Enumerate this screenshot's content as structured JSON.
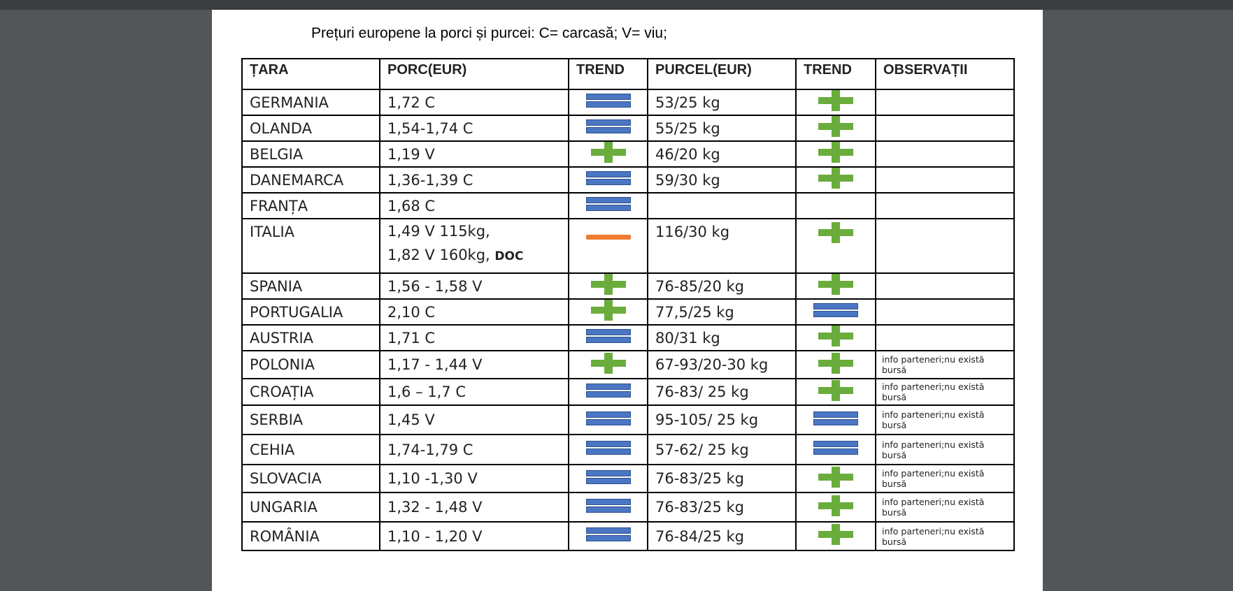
{
  "document": {
    "title": "Prețuri europene la porci și purcei: C= carcasă; V= viu;",
    "table": {
      "headers": [
        "ȚARA",
        "PORC(EUR)",
        "TREND",
        "PURCEL(EUR)",
        "TREND",
        "OBSERVAȚII"
      ],
      "rows": [
        {
          "tara": "GERMANIA",
          "porc": [
            "1,72 C"
          ],
          "porc_trend": "equal",
          "purcel": "53/25 kg",
          "purcel_trend": "up",
          "observatii": null
        },
        {
          "tara": "OLANDA",
          "porc": [
            "1,54-1,74 C"
          ],
          "porc_trend": "equal",
          "purcel": "55/25 kg",
          "purcel_trend": "up",
          "observatii": null
        },
        {
          "tara": "BELGIA",
          "porc": [
            "1,19 V"
          ],
          "porc_trend": "up",
          "purcel": "46/20 kg",
          "purcel_trend": "up",
          "observatii": null
        },
        {
          "tara": "DANEMARCA",
          "porc": [
            "1,36-1,39 C"
          ],
          "porc_trend": "equal",
          "purcel": "59/30 kg",
          "purcel_trend": "up",
          "observatii": null
        },
        {
          "tara": "FRANȚA",
          "porc": [
            "1,68 C"
          ],
          "porc_trend": "equal",
          "purcel": null,
          "purcel_trend": null,
          "observatii": null
        },
        {
          "tara": "ITALIA",
          "porc": [
            "1,49  V 115kg,",
            "1,82 V 160kg,"
          ],
          "porc_note": "DOC",
          "porc_trend": "down",
          "purcel": "116/30 kg",
          "purcel_trend": "up",
          "observatii": null
        },
        {
          "tara": "SPANIA",
          "porc": [
            "1,56 - 1,58 V"
          ],
          "porc_trend": "up",
          "purcel": "76-85/20 kg",
          "purcel_trend": "up",
          "observatii": null
        },
        {
          "tara": "PORTUGALIA",
          "porc": [
            "2,10 C"
          ],
          "porc_trend": "up",
          "purcel": "77,5/25 kg",
          "purcel_trend": "equal",
          "observatii": null
        },
        {
          "tara": "AUSTRIA",
          "porc": [
            "1,71 C"
          ],
          "porc_trend": "equal",
          "purcel": "80/31 kg",
          "purcel_trend": "up",
          "observatii": null
        },
        {
          "tara": "POLONIA",
          "porc": [
            "1,17 - 1,44 V"
          ],
          "porc_trend": "up",
          "purcel": "67-93/20-30 kg",
          "purcel_trend": "up",
          "observatii": "info parteneri;nu există bursă"
        },
        {
          "tara": "CROAȚIA",
          "porc": [
            "1,6 – 1,7 C"
          ],
          "porc_trend": "equal",
          "purcel": "76-83/ 25 kg",
          "purcel_trend": "up",
          "observatii": "info parteneri;nu există bursă"
        },
        {
          "tara": "SERBIA",
          "porc": [
            "1,45 V"
          ],
          "porc_trend": "equal",
          "purcel": "95-105/ 25 kg",
          "purcel_trend": "equal",
          "observatii": "info parteneri;nu există bursă"
        },
        {
          "tara": "CEHIA",
          "porc": [
            "1,74-1,79 C"
          ],
          "porc_trend": "equal",
          "purcel": "57-62/ 25 kg",
          "purcel_trend": "equal",
          "observatii": "info parteneri;nu există bursă"
        },
        {
          "tara": "SLOVACIA",
          "porc": [
            "1,10 -1,30 V"
          ],
          "porc_trend": "equal",
          "purcel": "76-83/25 kg",
          "purcel_trend": "up",
          "observatii": "info parteneri;nu există bursă"
        },
        {
          "tara": "UNGARIA",
          "porc": [
            "1,32 - 1,48 V"
          ],
          "porc_trend": "equal",
          "purcel": "76-83/25 kg",
          "purcel_trend": "up",
          "observatii": "info parteneri;nu există bursă"
        },
        {
          "tara": "ROMÂNIA",
          "porc": [
            "1,10 - 1,20 V"
          ],
          "porc_trend": "equal",
          "purcel": "76-84/25 kg",
          "purcel_trend": "up",
          "observatii": "info parteneri;nu există bursă"
        }
      ]
    }
  }
}
